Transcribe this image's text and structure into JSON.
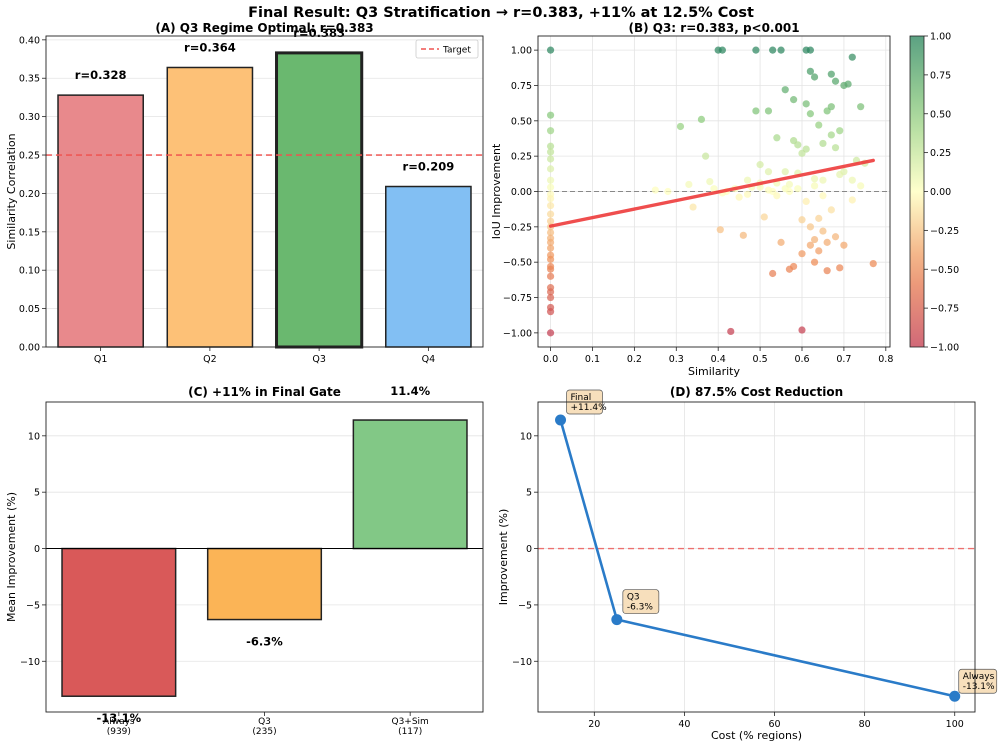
{
  "figure_title": "Final Result: Q3 Stratification → r=0.383, +11% at 12.5% Cost",
  "colors": {
    "q1": "#e8898c",
    "q2": "#fdc177",
    "q3": "#6ab86f",
    "q4": "#82bff3",
    "c_always": "#d95959",
    "c_q3": "#fbb456",
    "c_q3sim": "#82c886",
    "target": "#ef5350",
    "fit": "#ee3b3b",
    "line_d": "#2a7bc8"
  },
  "chart_data": [
    {
      "id": "A",
      "type": "bar",
      "title": "(A) Q3 Regime Optimal: r=0.383",
      "xlabel": "",
      "ylabel": "Similarity Correlation",
      "categories": [
        "Q1",
        "Q2",
        "Q3",
        "Q4"
      ],
      "values": [
        0.328,
        0.364,
        0.383,
        0.209
      ],
      "data_labels": [
        "r=0.328",
        "r=0.364",
        "r=0.383",
        "r=0.209"
      ],
      "ylim": [
        0,
        0.405
      ],
      "yticks": [
        0.0,
        0.05,
        0.1,
        0.15,
        0.2,
        0.25,
        0.3,
        0.35,
        0.4
      ],
      "ytick_labels": [
        "0.00",
        "0.05",
        "0.10",
        "0.15",
        "0.20",
        "0.25",
        "0.30",
        "0.35",
        "0.40"
      ],
      "target": 0.25,
      "legend": [
        {
          "label": "Target"
        }
      ],
      "legend_position": "top-right",
      "grid": true
    },
    {
      "id": "B",
      "type": "scatter",
      "title": "(B) Q3: r=0.383, p<0.001",
      "xlabel": "Similarity",
      "ylabel": "IoU Improvement",
      "xlim": [
        -0.03,
        0.81
      ],
      "ylim": [
        -1.1,
        1.1
      ],
      "xticks": [
        0.0,
        0.1,
        0.2,
        0.3,
        0.4,
        0.5,
        0.6,
        0.7,
        0.8
      ],
      "xtick_labels": [
        "0.0",
        "0.1",
        "0.2",
        "0.3",
        "0.4",
        "0.5",
        "0.6",
        "0.7",
        "0.8"
      ],
      "yticks": [
        -1.0,
        -0.75,
        -0.5,
        -0.25,
        0.0,
        0.25,
        0.5,
        0.75,
        1.0
      ],
      "ytick_labels": [
        "−1.00",
        "−0.75",
        "−0.50",
        "−0.25",
        "0.00",
        "0.25",
        "0.50",
        "0.75",
        "1.00"
      ],
      "colorbar": {
        "min": -1,
        "max": 1,
        "ticks": [
          -1.0,
          -0.75,
          -0.5,
          -0.25,
          0.0,
          0.25,
          0.5,
          0.75,
          1.0
        ],
        "tick_labels": [
          "−1.00",
          "−0.75",
          "−0.50",
          "−0.25",
          "0.00",
          "0.25",
          "0.50",
          "0.75",
          "1.00"
        ]
      },
      "fit_line": {
        "x": [
          0.0,
          0.77
        ],
        "y": [
          -0.245,
          0.22
        ]
      },
      "zero_line": 0.0,
      "grid": true,
      "points": [
        [
          0,
          1.0
        ],
        [
          0,
          0.54
        ],
        [
          0,
          0.43
        ],
        [
          0,
          0.32
        ],
        [
          0,
          0.28
        ],
        [
          0,
          0.23
        ],
        [
          0,
          0.16
        ],
        [
          0,
          0.08
        ],
        [
          0,
          0.03
        ],
        [
          0,
          -0.02
        ],
        [
          0,
          -0.05
        ],
        [
          0,
          -0.1
        ],
        [
          0,
          -0.16
        ],
        [
          0,
          -0.21
        ],
        [
          0,
          -0.25
        ],
        [
          0,
          -0.29
        ],
        [
          0,
          -0.33
        ],
        [
          0,
          -0.36
        ],
        [
          0,
          -0.4
        ],
        [
          0,
          -0.45
        ],
        [
          0,
          -0.48
        ],
        [
          0,
          -0.53
        ],
        [
          0,
          -0.55
        ],
        [
          0,
          -0.6
        ],
        [
          0,
          -0.68
        ],
        [
          0,
          -0.71
        ],
        [
          0,
          -0.75
        ],
        [
          0,
          -0.82
        ],
        [
          0,
          -0.85
        ],
        [
          0,
          -1.0
        ],
        [
          0.31,
          0.46
        ],
        [
          0.34,
          -0.11
        ],
        [
          0.36,
          0.51
        ],
        [
          0.37,
          0.25
        ],
        [
          0.38,
          0.07
        ],
        [
          0.39,
          0.02
        ],
        [
          0.4,
          1.0
        ],
        [
          0.41,
          1.0
        ],
        [
          0.405,
          -0.27
        ],
        [
          0.42,
          0.0
        ],
        [
          0.43,
          -0.99
        ],
        [
          0.46,
          -0.31
        ],
        [
          0.47,
          0.08
        ],
        [
          0.48,
          0.03
        ],
        [
          0.49,
          0.57
        ],
        [
          0.49,
          1.0
        ],
        [
          0.5,
          0.19
        ],
        [
          0.5,
          0.03
        ],
        [
          0.51,
          -0.18
        ],
        [
          0.52,
          0.57
        ],
        [
          0.52,
          0.14
        ],
        [
          0.53,
          1.0
        ],
        [
          0.53,
          0.0
        ],
        [
          0.53,
          -0.58
        ],
        [
          0.54,
          0.38
        ],
        [
          0.54,
          0.06
        ],
        [
          0.55,
          -0.36
        ],
        [
          0.55,
          1.0
        ],
        [
          0.56,
          0.72
        ],
        [
          0.56,
          0.14
        ],
        [
          0.56,
          0.02
        ],
        [
          0.57,
          -0.55
        ],
        [
          0.57,
          0.0
        ],
        [
          0.58,
          0.65
        ],
        [
          0.58,
          0.36
        ],
        [
          0.58,
          -0.53
        ],
        [
          0.59,
          0.33
        ],
        [
          0.59,
          0.13
        ],
        [
          0.6,
          0.27
        ],
        [
          0.6,
          -0.2
        ],
        [
          0.6,
          -0.44
        ],
        [
          0.6,
          -0.98
        ],
        [
          0.61,
          1.0
        ],
        [
          0.61,
          0.62
        ],
        [
          0.61,
          0.3
        ],
        [
          0.61,
          -0.07
        ],
        [
          0.62,
          0.85
        ],
        [
          0.62,
          0.55
        ],
        [
          0.62,
          1.0
        ],
        [
          0.62,
          -0.25
        ],
        [
          0.62,
          -0.38
        ],
        [
          0.63,
          0.81
        ],
        [
          0.63,
          0.09
        ],
        [
          0.63,
          -0.34
        ],
        [
          0.63,
          -0.5
        ],
        [
          0.64,
          0.47
        ],
        [
          0.64,
          -0.19
        ],
        [
          0.64,
          -0.42
        ],
        [
          0.65,
          0.34
        ],
        [
          0.65,
          0.08
        ],
        [
          0.65,
          -0.28
        ],
        [
          0.66,
          0.57
        ],
        [
          0.66,
          -0.36
        ],
        [
          0.66,
          -0.56
        ],
        [
          0.67,
          0.83
        ],
        [
          0.67,
          0.6
        ],
        [
          0.67,
          0.4
        ],
        [
          0.67,
          -0.13
        ],
        [
          0.68,
          0.78
        ],
        [
          0.68,
          0.31
        ],
        [
          0.68,
          -0.32
        ],
        [
          0.69,
          0.43
        ],
        [
          0.69,
          0.12
        ],
        [
          0.69,
          -0.54
        ],
        [
          0.7,
          0.75
        ],
        [
          0.7,
          -0.38
        ],
        [
          0.71,
          0.76
        ],
        [
          0.72,
          0.95
        ],
        [
          0.72,
          0.08
        ],
        [
          0.73,
          0.22
        ],
        [
          0.74,
          0.6
        ],
        [
          0.74,
          0.04
        ],
        [
          0.77,
          -0.51
        ],
        [
          0.25,
          0.01
        ],
        [
          0.28,
          0.0
        ],
        [
          0.33,
          0.05
        ],
        [
          0.41,
          -0.01
        ],
        [
          0.44,
          0.02
        ],
        [
          0.45,
          -0.04
        ],
        [
          0.47,
          -0.02
        ],
        [
          0.5,
          0.06
        ],
        [
          0.52,
          0.01
        ],
        [
          0.54,
          -0.03
        ],
        [
          0.57,
          0.05
        ],
        [
          0.59,
          0.02
        ],
        [
          0.63,
          0.04
        ],
        [
          0.65,
          -0.03
        ],
        [
          0.7,
          0.14
        ],
        [
          0.72,
          -0.06
        ],
        [
          0.75,
          0.2
        ]
      ]
    },
    {
      "id": "C",
      "type": "bar",
      "title": "(C) +11% in Final Gate",
      "xlabel": "",
      "ylabel": "Mean Improvement (%)",
      "categories": [
        "Always",
        "Q3",
        "Q3+Sim"
      ],
      "category_counts": [
        "(939)",
        "(235)",
        "(117)"
      ],
      "values": [
        -13.1,
        -6.3,
        11.4
      ],
      "data_labels": [
        "-13.1%",
        "-6.3%",
        "11.4%"
      ],
      "ylim": [
        -14.5,
        13.0
      ],
      "yticks": [
        -10,
        -5,
        0,
        5,
        10
      ],
      "ytick_labels": [
        "−10",
        "−5",
        "0",
        "5",
        "10"
      ],
      "zero_line": 0,
      "grid": true
    },
    {
      "id": "D",
      "type": "line",
      "title": "(D) 87.5% Cost Reduction",
      "xlabel": "Cost (% regions)",
      "ylabel": "Improvement (%)",
      "x": [
        12.5,
        25,
        100
      ],
      "y": [
        11.4,
        -6.3,
        -13.1
      ],
      "point_labels": [
        [
          "Final",
          "+11.4%"
        ],
        [
          "Q3",
          "-6.3%"
        ],
        [
          "Always",
          "-13.1%"
        ]
      ],
      "xlim": [
        7.5,
        104.5
      ],
      "ylim": [
        -14.5,
        13.0
      ],
      "xticks": [
        20,
        40,
        60,
        80,
        100
      ],
      "xtick_labels": [
        "20",
        "40",
        "60",
        "80",
        "100"
      ],
      "yticks": [
        -10,
        -5,
        0,
        5,
        10
      ],
      "ytick_labels": [
        "−10",
        "−5",
        "0",
        "5",
        "10"
      ],
      "zero_line": 0,
      "grid": true
    }
  ]
}
